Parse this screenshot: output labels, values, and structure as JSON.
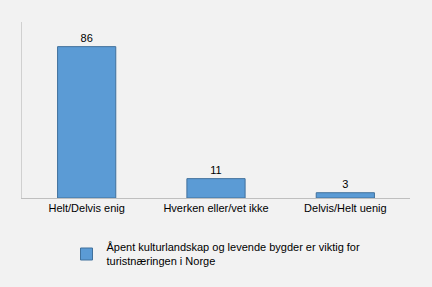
{
  "chart_data": {
    "type": "bar",
    "categories": [
      "Helt/Delvis enig",
      "Hverken eller/vet ikke",
      "Delvis/Helt uenig"
    ],
    "series": [
      {
        "name": "Åpent kulturlandskap og levende bygder er viktig for turistnæringen i Norge",
        "color": "#5b9bd5",
        "values": [
          86,
          11,
          3
        ]
      }
    ],
    "ylim": [
      0,
      100
    ],
    "grid": false,
    "legend": "bottom",
    "data_labels": true,
    "tick_labels": "x"
  }
}
